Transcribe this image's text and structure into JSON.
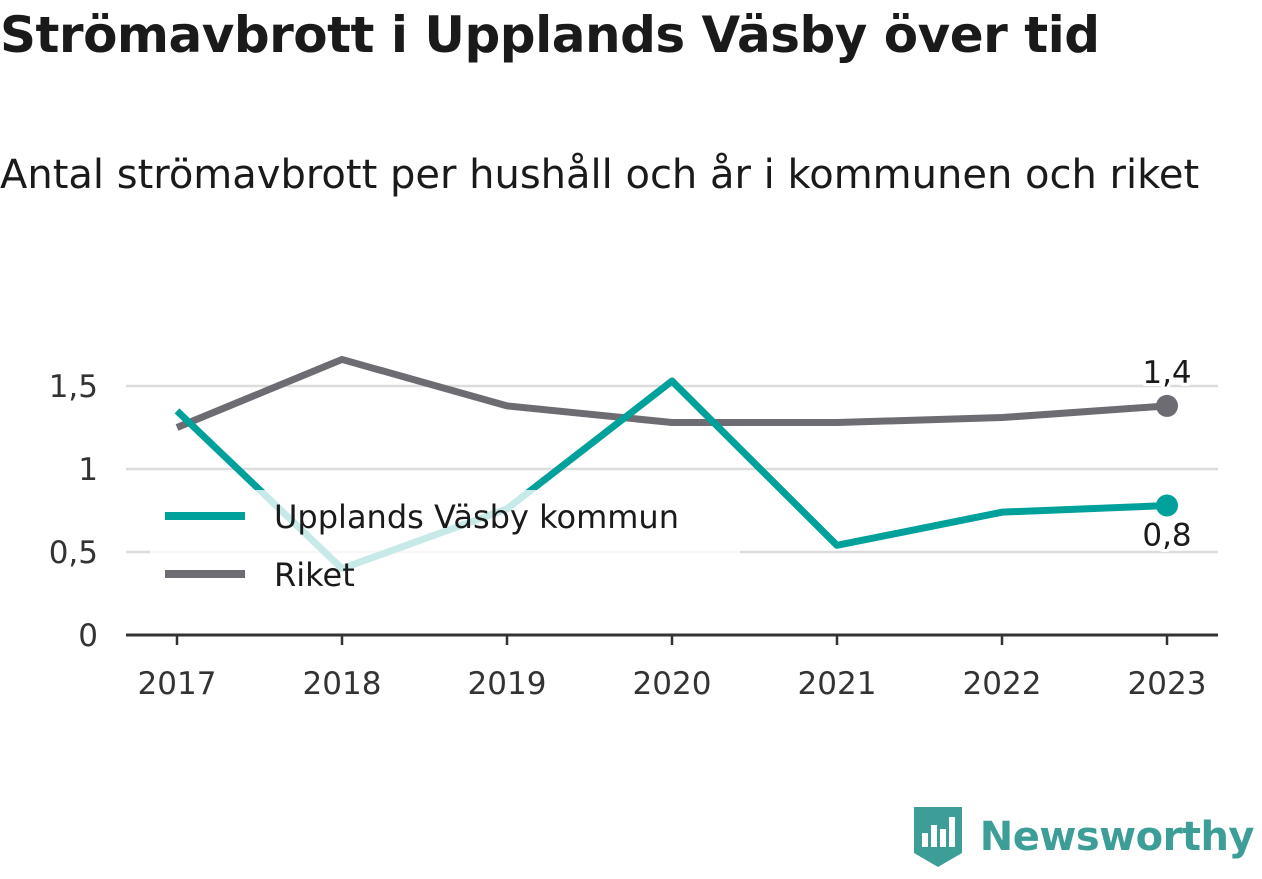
{
  "header": {
    "title": "Strömavbrott i Upplands Väsby över tid",
    "subtitle": "Antal strömavbrott per hushåll och år i kommunen och riket"
  },
  "brand": {
    "name": "Newsworthy",
    "icon": "bar-chart-speech-bubble-icon",
    "color": "#3d9e98"
  },
  "chart_data": {
    "type": "line",
    "categories": [
      "2017",
      "2018",
      "2019",
      "2020",
      "2021",
      "2022",
      "2023"
    ],
    "ylim": [
      0,
      1.75
    ],
    "yticks": [
      {
        "value": 0,
        "label": "0"
      },
      {
        "value": 0.5,
        "label": "0,5"
      },
      {
        "value": 1,
        "label": "1"
      },
      {
        "value": 1.5,
        "label": "1,5"
      }
    ],
    "grid": true,
    "legend_position": "bottom-left",
    "series": [
      {
        "name": "Upplands Väsby kommun",
        "color": "#00a19a",
        "values": [
          1.35,
          0.4,
          0.76,
          1.53,
          0.54,
          0.74,
          0.78
        ],
        "end_label": "0,8"
      },
      {
        "name": "Riket",
        "color": "#6e6c73",
        "values": [
          1.25,
          1.66,
          1.38,
          1.28,
          1.28,
          1.31,
          1.38
        ],
        "end_label": "1,4"
      }
    ]
  }
}
